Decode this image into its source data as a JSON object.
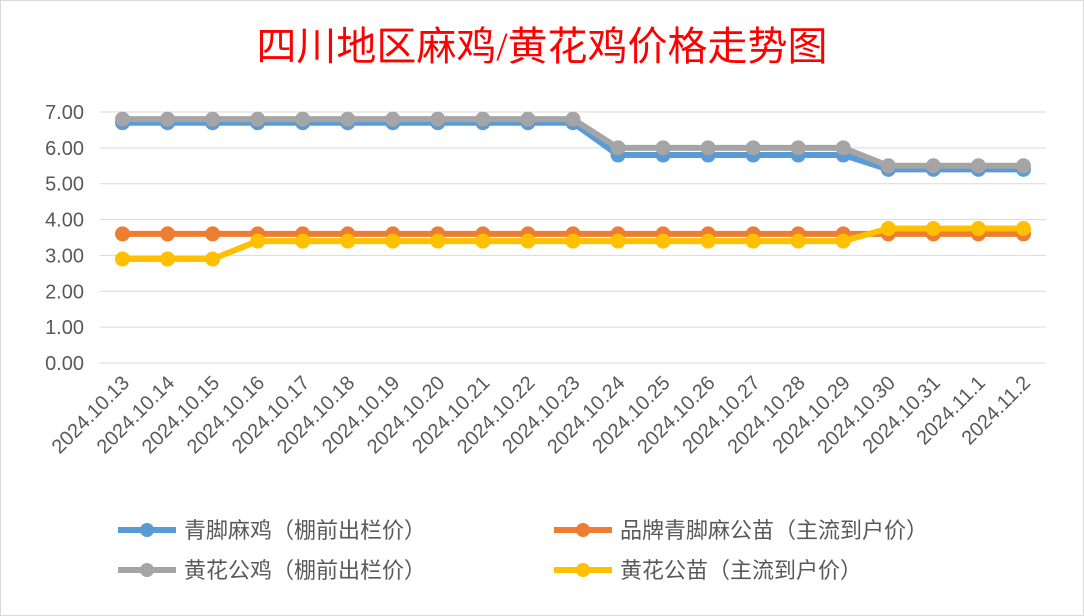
{
  "chart_data": {
    "type": "line",
    "title": "四川地区麻鸡/黄花鸡价格走势图",
    "xlabel": "",
    "ylabel": "",
    "ylim": [
      0,
      7
    ],
    "ytick_labels": [
      "0.00",
      "1.00",
      "2.00",
      "3.00",
      "4.00",
      "5.00",
      "6.00",
      "7.00"
    ],
    "grid": true,
    "legend_position": "bottom",
    "x": [
      "2024.10.13",
      "2024.10.14",
      "2024.10.15",
      "2024.10.16",
      "2024.10.17",
      "2024.10.18",
      "2024.10.19",
      "2024.10.20",
      "2024.10.21",
      "2024.10.22",
      "2024.10.23",
      "2024.10.24",
      "2024.10.25",
      "2024.10.26",
      "2024.10.27",
      "2024.10.28",
      "2024.10.29",
      "2024.10.30",
      "2024.10.31",
      "2024.11.1",
      "2024.11.2"
    ],
    "series": [
      {
        "name": "青脚麻鸡（棚前出栏价）",
        "color": "#5b9bd5",
        "values": [
          6.7,
          6.7,
          6.7,
          6.7,
          6.7,
          6.7,
          6.7,
          6.7,
          6.7,
          6.7,
          6.7,
          5.8,
          5.8,
          5.8,
          5.8,
          5.8,
          5.8,
          5.4,
          5.4,
          5.4,
          5.4
        ]
      },
      {
        "name": "品牌青脚麻公苗（主流到户价）",
        "color": "#ed7d31",
        "values": [
          3.6,
          3.6,
          3.6,
          3.6,
          3.6,
          3.6,
          3.6,
          3.6,
          3.6,
          3.6,
          3.6,
          3.6,
          3.6,
          3.6,
          3.6,
          3.6,
          3.6,
          3.6,
          3.6,
          3.6,
          3.6
        ]
      },
      {
        "name": "黄花公鸡（棚前出栏价）",
        "color": "#a5a5a5",
        "values": [
          6.8,
          6.8,
          6.8,
          6.8,
          6.8,
          6.8,
          6.8,
          6.8,
          6.8,
          6.8,
          6.8,
          6.0,
          6.0,
          6.0,
          6.0,
          6.0,
          6.0,
          5.5,
          5.5,
          5.5,
          5.5
        ]
      },
      {
        "name": "黄花公苗（主流到户价）",
        "color": "#ffc000",
        "values": [
          2.9,
          2.9,
          2.9,
          3.4,
          3.4,
          3.4,
          3.4,
          3.4,
          3.4,
          3.4,
          3.4,
          3.4,
          3.4,
          3.4,
          3.4,
          3.4,
          3.4,
          3.75,
          3.75,
          3.75,
          3.75
        ]
      }
    ]
  }
}
